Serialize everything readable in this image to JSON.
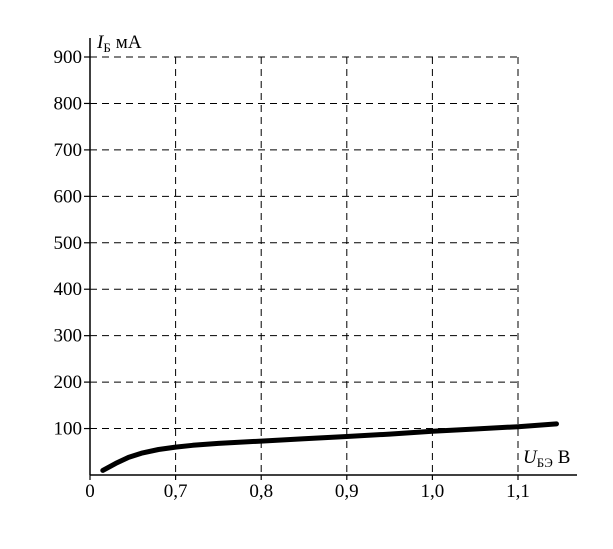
{
  "chart_data": {
    "type": "line",
    "y_axis": {
      "symbol": "I",
      "subscript": "Б",
      "unit": "мА"
    },
    "x_axis": {
      "symbol": "U",
      "subscript": "БЭ",
      "unit": "В"
    },
    "xlim": [
      0.6,
      1.15
    ],
    "ylim": [
      0,
      900
    ],
    "x_ticks": [
      0.6,
      0.7,
      0.8,
      0.9,
      1.0,
      1.1
    ],
    "x_tick_labels": [
      "0",
      "0,7",
      "0,8",
      "0,9",
      "1,0",
      "1,1"
    ],
    "y_ticks": [
      100,
      200,
      300,
      400,
      500,
      600,
      700,
      800,
      900
    ],
    "y_tick_labels": [
      "100",
      "200",
      "300",
      "400",
      "500",
      "600",
      "700",
      "800",
      "900"
    ],
    "grid": true,
    "grid_style": "dashed",
    "series": [
      {
        "x": [
          0.615,
          0.63,
          0.645,
          0.66,
          0.68,
          0.7,
          0.72,
          0.75,
          0.8,
          0.85,
          0.9,
          0.95,
          1.0,
          1.05,
          1.1,
          1.145
        ],
        "y": [
          10,
          25,
          38,
          47,
          55,
          60,
          64,
          68,
          73,
          78,
          83,
          88,
          94,
          99,
          104,
          110
        ]
      }
    ]
  }
}
